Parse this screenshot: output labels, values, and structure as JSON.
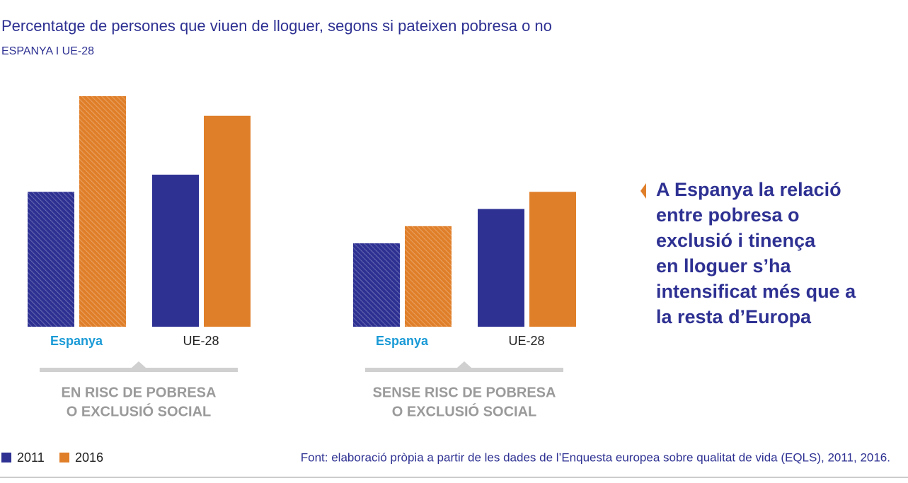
{
  "chart_data": {
    "type": "bar",
    "title": "Percentatge de persones que viuen de lloguer, segons si pateixen pobresa o no",
    "subtitle": "ESPANYA I UE-28",
    "categories": [
      "Espanya",
      "UE-28",
      "Espanya",
      "UE-28"
    ],
    "hatched": [
      true,
      false,
      true,
      false
    ],
    "series": [
      {
        "name": "2011",
        "color": "#2e3192",
        "values": [
          27.5,
          31,
          17,
          24
        ]
      },
      {
        "name": "2016",
        "color": "#e07f2a",
        "values": [
          47,
          43,
          20.5,
          27.5
        ]
      }
    ],
    "groups": [
      {
        "label": [
          "EN RISC DE POBRESA",
          "O EXCLUSIÓ SOCIAL"
        ]
      },
      {
        "label": [
          "SENSE RISC DE POBRESA",
          "O EXCLUSIÓ SOCIAL"
        ]
      }
    ],
    "annotation": [
      "A Espanya la relació",
      "entre pobresa o",
      "exclusió i tinença",
      "en lloguer s’ha",
      "intensificat més que a",
      "la resta d’Europa"
    ],
    "source": "Font: elaboració pròpia a partir de les dades de l’Enquesta europea sobre qualitat de vida (EQLS), 2011, 2016."
  }
}
